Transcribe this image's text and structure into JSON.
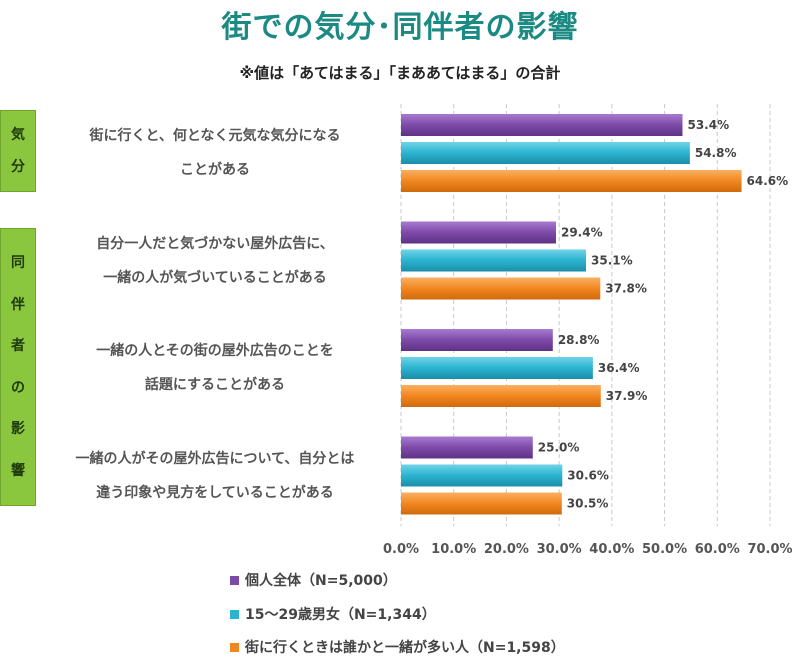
{
  "title": "街での気分･同伴者の影響",
  "subtitle": "※値は「あてはまる」「まああてはまる」の合計",
  "side_labels": {
    "kibun": [
      "気",
      "分"
    ],
    "dohan": [
      "同",
      "伴",
      "者",
      "の",
      "影",
      "響"
    ]
  },
  "colors": {
    "series1": "#7d4aa8",
    "series2": "#2bb3cf",
    "series3": "#f2861f",
    "side_box": "#8bc63f"
  },
  "chart_data": {
    "type": "bar",
    "orientation": "horizontal",
    "categories": [
      [
        "街に行くと、何となく元気な気分になる",
        "ことがある"
      ],
      [
        "自分一人だと気づかない屋外広告に、",
        "一緒の人が気づいていることがある"
      ],
      [
        "一緒の人とその街の屋外広告のことを",
        "話題にすることがある"
      ],
      [
        "一緒の人がその屋外広告について、自分とは",
        "違う印象や見方をしていることがある"
      ]
    ],
    "series": [
      {
        "name": "個人全体（N=5,000）",
        "values": [
          53.4,
          29.4,
          28.8,
          25.0
        ],
        "labels": [
          "53.4%",
          "29.4%",
          "28.8%",
          "25.0%"
        ]
      },
      {
        "name": "15～29歳男女（N=1,344）",
        "values": [
          54.8,
          35.1,
          36.4,
          30.6
        ],
        "labels": [
          "54.8%",
          "35.1%",
          "36.4%",
          "30.6%"
        ]
      },
      {
        "name": "街に行くときは誰かと一緒が多い人（N=1,598）",
        "values": [
          64.6,
          37.8,
          37.9,
          30.5
        ],
        "labels": [
          "64.6%",
          "37.8%",
          "37.9%",
          "30.5%"
        ]
      }
    ],
    "xlim": [
      0,
      70
    ],
    "ticks": [
      "0.0%",
      "10.0%",
      "20.0%",
      "30.0%",
      "40.0%",
      "50.0%",
      "60.0%",
      "70.0%"
    ],
    "grid": true,
    "legend_position": "bottom"
  }
}
